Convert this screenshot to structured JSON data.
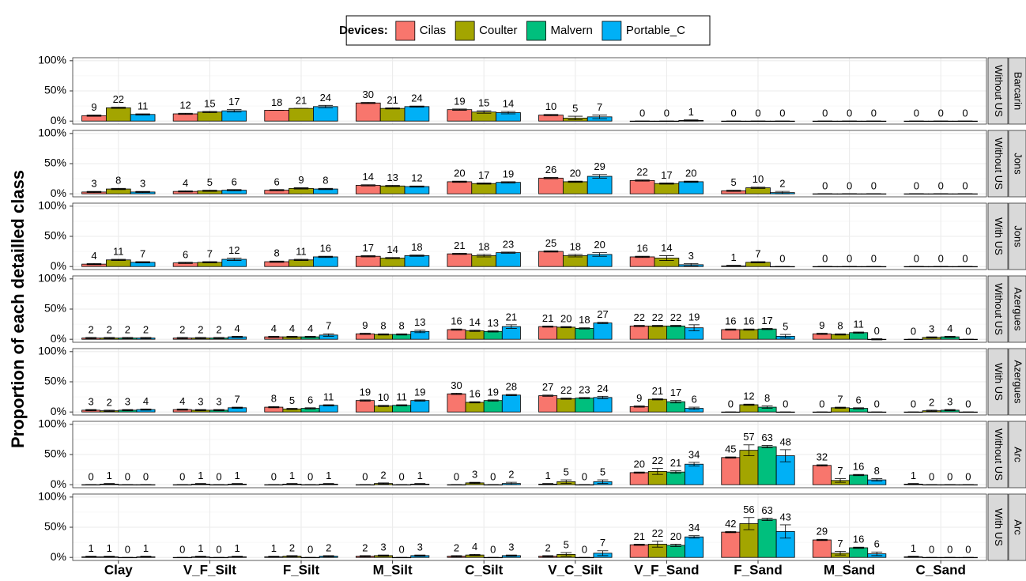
{
  "chart_data": {
    "type": "bar",
    "y_label": "Proportion of each detailled class",
    "legend": {
      "title": "Devices:",
      "position": "top"
    },
    "series": [
      {
        "name": "Cilas",
        "color": "#F8766D"
      },
      {
        "name": "Coulter",
        "color": "#A3A500"
      },
      {
        "name": "Malvern",
        "color": "#00BF7D"
      },
      {
        "name": "Portable_C",
        "color": "#00B0F6"
      }
    ],
    "categories": [
      "Clay",
      "V_F_Silt",
      "F_Silt",
      "M_Silt",
      "C_Silt",
      "V_C_Silt",
      "V_F_Sand",
      "F_Sand",
      "M_Sand",
      "C_Sand"
    ],
    "ylim": [
      -5,
      105
    ],
    "yticks": [
      {
        "value": 0,
        "label": "0%"
      },
      {
        "value": 50,
        "label": "50%"
      },
      {
        "value": 100,
        "label": "100%"
      }
    ],
    "grid": true,
    "error_bars": true,
    "panels": [
      {
        "site": "Barcarin",
        "condition": "Without US",
        "values": [
          [
            9,
            12,
            18,
            30,
            19,
            10,
            0,
            0,
            0,
            0
          ],
          [
            22,
            15,
            21,
            21,
            15,
            5,
            0,
            0,
            0,
            0
          ],
          null,
          [
            11,
            17,
            24,
            24,
            14,
            7,
            1,
            0,
            0,
            0
          ]
        ],
        "errors": [
          [
            1,
            1,
            0,
            1,
            1,
            1,
            0,
            0,
            0,
            0
          ],
          [
            1,
            1,
            0,
            1,
            2,
            3,
            0,
            0,
            0,
            0
          ],
          null,
          [
            1,
            2,
            2,
            1,
            2,
            3,
            1,
            0,
            0,
            0
          ]
        ]
      },
      {
        "site": "Jons",
        "condition": "Without US",
        "values": [
          [
            3,
            4,
            6,
            14,
            20,
            26,
            22,
            5,
            0,
            0
          ],
          [
            8,
            5,
            9,
            13,
            17,
            20,
            17,
            10,
            0,
            0
          ],
          null,
          [
            3,
            6,
            8,
            12,
            19,
            29,
            20,
            2,
            0,
            0
          ]
        ],
        "errors": [
          [
            1,
            1,
            1,
            1,
            1,
            1,
            1,
            1,
            0,
            0
          ],
          [
            1,
            1,
            1,
            1,
            1,
            1,
            1,
            1,
            0,
            0
          ],
          null,
          [
            1,
            1,
            1,
            1,
            1,
            3,
            1,
            2,
            0,
            0
          ]
        ]
      },
      {
        "site": "Jons",
        "condition": "With US",
        "values": [
          [
            4,
            6,
            8,
            17,
            21,
            25,
            16,
            1,
            0,
            0
          ],
          [
            11,
            7,
            11,
            14,
            18,
            18,
            14,
            7,
            0,
            0
          ],
          null,
          [
            7,
            12,
            16,
            18,
            23,
            20,
            3,
            0,
            0,
            0
          ]
        ],
        "errors": [
          [
            1,
            1,
            1,
            1,
            1,
            1,
            1,
            1,
            0,
            0
          ],
          [
            1,
            1,
            1,
            1,
            2,
            2,
            4,
            1,
            0,
            0
          ],
          null,
          [
            1,
            2,
            1,
            1,
            1,
            3,
            2,
            0,
            0,
            0
          ]
        ]
      },
      {
        "site": "Azergues",
        "condition": "Without US",
        "values": [
          [
            2,
            2,
            4,
            9,
            16,
            21,
            22,
            16,
            9,
            0
          ],
          [
            2,
            2,
            4,
            8,
            14,
            20,
            22,
            16,
            8,
            3
          ],
          [
            2,
            2,
            4,
            8,
            13,
            18,
            22,
            17,
            11,
            4
          ],
          [
            2,
            4,
            7,
            13,
            21,
            27,
            19,
            5,
            0,
            0
          ]
        ],
        "errors": [
          [
            1,
            1,
            1,
            1,
            1,
            1,
            1,
            1,
            1,
            0
          ],
          [
            1,
            1,
            1,
            1,
            1,
            1,
            1,
            1,
            1,
            1
          ],
          [
            1,
            1,
            1,
            1,
            1,
            1,
            1,
            1,
            1,
            1
          ],
          [
            1,
            1,
            2,
            2,
            3,
            1,
            5,
            3,
            1,
            0
          ]
        ]
      },
      {
        "site": "Azergues",
        "condition": "With US",
        "values": [
          [
            3,
            4,
            8,
            19,
            30,
            27,
            9,
            0,
            0,
            0
          ],
          [
            2,
            3,
            5,
            10,
            16,
            22,
            21,
            12,
            7,
            2
          ],
          [
            3,
            3,
            6,
            11,
            19,
            23,
            17,
            8,
            6,
            3
          ],
          [
            4,
            7,
            11,
            19,
            28,
            24,
            6,
            0,
            0,
            0
          ]
        ],
        "errors": [
          [
            1,
            1,
            1,
            1,
            1,
            1,
            1,
            0,
            0,
            0
          ],
          [
            1,
            1,
            1,
            1,
            1,
            1,
            1,
            1,
            1,
            1
          ],
          [
            1,
            1,
            1,
            1,
            1,
            1,
            2,
            2,
            1,
            1
          ],
          [
            1,
            1,
            1,
            1,
            1,
            2,
            2,
            0,
            0,
            0
          ]
        ]
      },
      {
        "site": "Arc",
        "condition": "Without US",
        "values": [
          [
            0,
            0,
            0,
            0,
            0,
            1,
            20,
            45,
            32,
            1
          ],
          [
            1,
            1,
            1,
            2,
            3,
            5,
            22,
            57,
            7,
            0
          ],
          [
            0,
            0,
            0,
            0,
            0,
            0,
            21,
            63,
            16,
            0
          ],
          [
            0,
            1,
            1,
            1,
            2,
            5,
            34,
            48,
            8,
            0
          ]
        ],
        "errors": [
          [
            0,
            0,
            0,
            0,
            0,
            1,
            1,
            1,
            1,
            1
          ],
          [
            1,
            1,
            1,
            1,
            1,
            3,
            5,
            9,
            3,
            0
          ],
          [
            0,
            0,
            0,
            0,
            0,
            0,
            2,
            2,
            1,
            0
          ],
          [
            0,
            1,
            1,
            1,
            2,
            3,
            3,
            10,
            2,
            0
          ]
        ]
      },
      {
        "site": "Arc",
        "condition": "With US",
        "values": [
          [
            1,
            0,
            1,
            2,
            2,
            2,
            21,
            42,
            29,
            1
          ],
          [
            1,
            1,
            2,
            3,
            4,
            5,
            22,
            56,
            7,
            0
          ],
          [
            0,
            0,
            0,
            0,
            0,
            0,
            20,
            63,
            16,
            0
          ],
          [
            1,
            1,
            2,
            3,
            3,
            7,
            34,
            43,
            6,
            0
          ]
        ],
        "errors": [
          [
            1,
            0,
            1,
            1,
            1,
            1,
            1,
            1,
            1,
            1
          ],
          [
            1,
            1,
            1,
            1,
            1,
            3,
            5,
            10,
            3,
            0
          ],
          [
            0,
            0,
            0,
            0,
            0,
            0,
            2,
            2,
            1,
            0
          ],
          [
            1,
            1,
            1,
            1,
            1,
            4,
            2,
            11,
            3,
            0
          ]
        ]
      }
    ]
  }
}
